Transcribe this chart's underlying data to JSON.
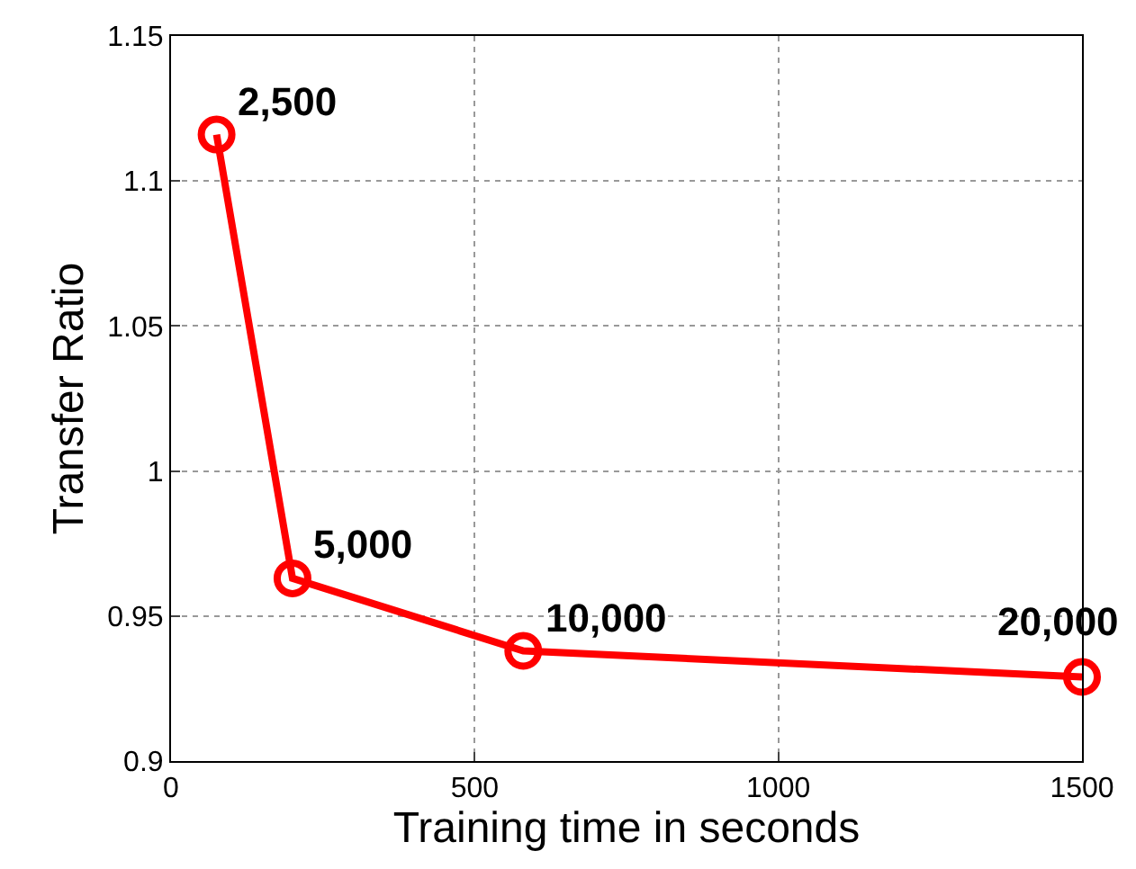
{
  "chart_data": {
    "type": "line",
    "xlabel": "Training time in seconds",
    "ylabel": "Transfer Ratio",
    "x": [
      75,
      200,
      580,
      1500
    ],
    "series": [
      {
        "color": "#ff0000",
        "values": [
          1.116,
          0.963,
          0.938,
          0.929
        ]
      }
    ],
    "annotations": [
      {
        "text": "2,500",
        "x": 75,
        "y": 1.116
      },
      {
        "text": "5,000",
        "x": 200,
        "y": 0.963
      },
      {
        "text": "10,000",
        "x": 580,
        "y": 0.938
      },
      {
        "text": "20,000",
        "x": 1500,
        "y": 0.929
      }
    ],
    "xlim": [
      0,
      1500
    ],
    "xticks": [
      0,
      500,
      1000,
      1500
    ],
    "ylim": [
      0.9,
      1.15
    ],
    "yticks": [
      0.9,
      0.95,
      1,
      1.05,
      1.1,
      1.15
    ],
    "grid": true,
    "marker": "circle",
    "line_style": "solid",
    "legend": false
  }
}
